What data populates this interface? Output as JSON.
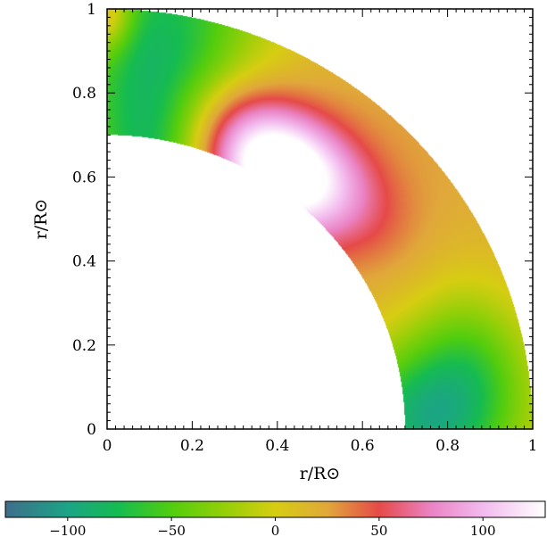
{
  "chart_data": {
    "type": "heatmap",
    "title": "",
    "xlabel": "r/R⊙",
    "ylabel": "r/R⊙",
    "xlim": [
      0,
      1
    ],
    "ylim": [
      0,
      1
    ],
    "x_ticks": [
      "0",
      "0.2",
      "0.4",
      "0.6",
      "0.8",
      "1"
    ],
    "y_ticks": [
      "0",
      "0.2",
      "0.4",
      "0.6",
      "0.8",
      "1"
    ],
    "domain": {
      "shape": "quarter annulus",
      "r_inner": 0.7,
      "r_outer": 1.0
    },
    "colorbar": {
      "orientation": "horizontal",
      "placement": "bottom",
      "range": [
        -130,
        130
      ],
      "ticks": [
        -100,
        -50,
        0,
        50,
        100
      ],
      "tick_labels": [
        "−100",
        "−50",
        "0",
        "50",
        "100"
      ],
      "colors": [
        {
          "value": -130,
          "color": "#3f6e8a"
        },
        {
          "value": -100,
          "color": "#1ba486"
        },
        {
          "value": -75,
          "color": "#16bc50"
        },
        {
          "value": -50,
          "color": "#52cd0e"
        },
        {
          "value": -25,
          "color": "#93cf08"
        },
        {
          "value": 0,
          "color": "#d7cd12"
        },
        {
          "value": 25,
          "color": "#e0a83a"
        },
        {
          "value": 50,
          "color": "#e54a48"
        },
        {
          "value": 75,
          "color": "#ea83c4"
        },
        {
          "value": 100,
          "color": "#f2baee"
        },
        {
          "value": 130,
          "color": "#ffffff"
        }
      ]
    },
    "field_features": [
      {
        "region": "high-latitude band (near pole)",
        "value": -95
      },
      {
        "region": "polar tip",
        "value": -35
      },
      {
        "region": "mid-latitude jet",
        "value": 120
      },
      {
        "region": "mid-latitude ridge",
        "value": 40
      },
      {
        "region": "outer mid latitudes",
        "value": 15
      },
      {
        "region": "low-latitude outer band",
        "value": 5
      },
      {
        "region": "equatorial base",
        "value": -90
      }
    ]
  }
}
